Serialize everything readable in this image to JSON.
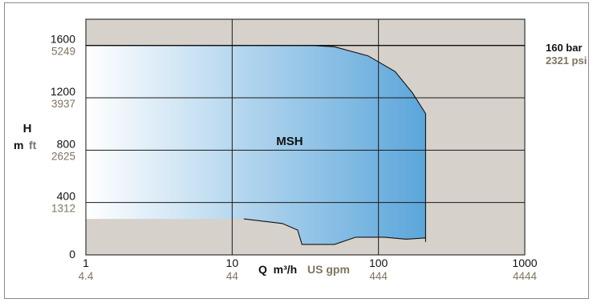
{
  "colors": {
    "plot_background": "#d6d1cb",
    "envelope_start": "#ffffff",
    "envelope_end": "#5aa5da",
    "grid": "#1a1a1a",
    "secondary_text": "#7d7560"
  },
  "chart_data": {
    "type": "area",
    "title": "",
    "series": [
      {
        "name": "MSH",
        "x_scale": "log",
        "upper_boundary": [
          {
            "x": 1,
            "y": 1600
          },
          {
            "x": 35,
            "y": 1600
          },
          {
            "x": 50,
            "y": 1590
          },
          {
            "x": 85,
            "y": 1520
          },
          {
            "x": 130,
            "y": 1400
          },
          {
            "x": 170,
            "y": 1240
          },
          {
            "x": 210,
            "y": 1080
          },
          {
            "x": 210,
            "y": 100
          }
        ],
        "lower_boundary": [
          {
            "x": 1,
            "y": 275
          },
          {
            "x": 12,
            "y": 275
          },
          {
            "x": 22,
            "y": 240
          },
          {
            "x": 28,
            "y": 190
          },
          {
            "x": 30,
            "y": 80
          },
          {
            "x": 50,
            "y": 80
          },
          {
            "x": 70,
            "y": 135
          },
          {
            "x": 110,
            "y": 135
          },
          {
            "x": 155,
            "y": 120
          },
          {
            "x": 210,
            "y": 130
          }
        ]
      }
    ],
    "x_axis": {
      "scale": "log",
      "range": [
        1,
        1000
      ],
      "ticks": [
        {
          "value": 1,
          "label": "1",
          "label_alt": "4.4"
        },
        {
          "value": 10,
          "label": "10",
          "label_alt": "44"
        },
        {
          "value": 100,
          "label": "100",
          "label_alt": "444"
        },
        {
          "value": 1000,
          "label": "1000",
          "label_alt": "4444"
        }
      ],
      "label_primary": "Q  m³/h",
      "label_secondary": "US gpm"
    },
    "y_axis": {
      "scale": "linear",
      "range": [
        0,
        1800
      ],
      "ticks": [
        {
          "value": 0,
          "label": "0",
          "label_alt": ""
        },
        {
          "value": 400,
          "label": "400",
          "label_alt": "1312"
        },
        {
          "value": 800,
          "label": "800",
          "label_alt": "2625"
        },
        {
          "value": 1200,
          "label": "1200",
          "label_alt": "3937"
        },
        {
          "value": 1600,
          "label": "1600",
          "label_alt": "5249"
        }
      ],
      "label_top": "H",
      "label_primary": "m",
      "label_secondary": "ft"
    },
    "pressure_limit": {
      "y": 1600,
      "label_primary": "160 bar",
      "label_secondary": "2321 psi"
    },
    "grid": true
  }
}
